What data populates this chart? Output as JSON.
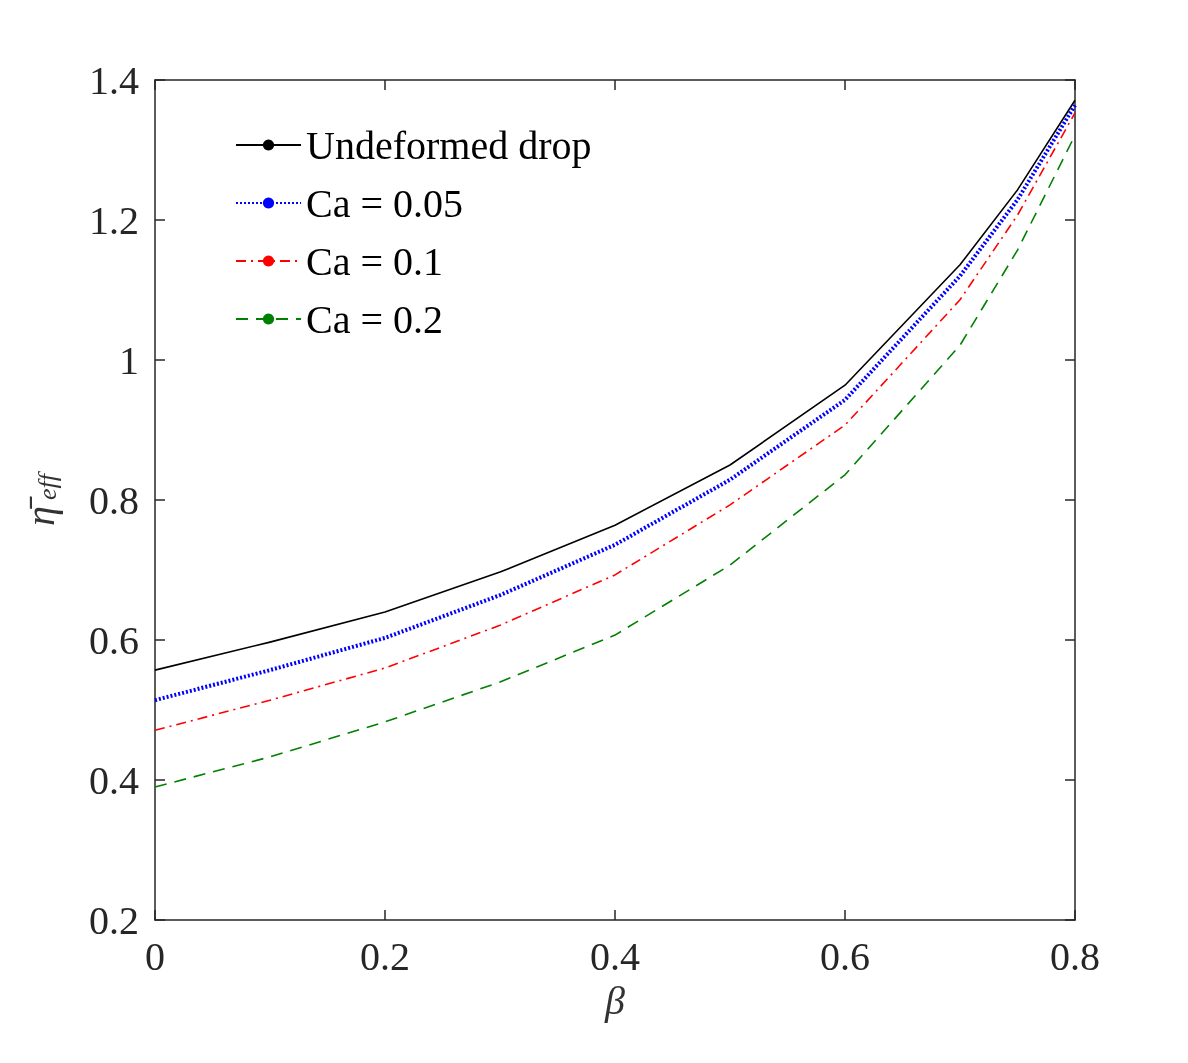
{
  "chart_data": {
    "type": "line",
    "xlabel": "β",
    "ylabel": "η̄$_{eff}$",
    "x": [
      0,
      0.1,
      0.2,
      0.3,
      0.4,
      0.5,
      0.6,
      0.7,
      0.75,
      0.8
    ],
    "series": [
      {
        "name": "Undeformed drop",
        "color": "#000000",
        "line_style": "solid",
        "values": [
          0.557,
          0.597,
          0.64,
          0.697,
          0.764,
          0.85,
          0.964,
          1.136,
          1.243,
          1.371
        ]
      },
      {
        "name": "Ca = 0.05",
        "color": "#0000ff",
        "line_style": "dotted",
        "values": [
          0.514,
          0.557,
          0.603,
          0.664,
          0.736,
          0.829,
          0.943,
          1.12,
          1.229,
          1.364
        ]
      },
      {
        "name": "Ca = 0.1",
        "color": "#ff0000",
        "line_style": "dashdot",
        "values": [
          0.471,
          0.514,
          0.56,
          0.621,
          0.693,
          0.793,
          0.907,
          1.086,
          1.207,
          1.353
        ]
      },
      {
        "name": "Ca = 0.2",
        "color": "#008000",
        "line_style": "dashed",
        "values": [
          0.39,
          0.433,
          0.483,
          0.54,
          0.607,
          0.707,
          0.836,
          1.021,
          1.157,
          1.321
        ]
      }
    ],
    "xlim": [
      0,
      0.8
    ],
    "xticks": [
      0,
      0.2,
      0.4,
      0.6,
      0.8
    ],
    "ylim": [
      0.2,
      1.4
    ],
    "yticks": [
      0.2,
      0.4,
      0.6,
      0.8,
      1,
      1.2,
      1.4
    ],
    "grid": false,
    "legend": "top left",
    "marker": "none"
  }
}
